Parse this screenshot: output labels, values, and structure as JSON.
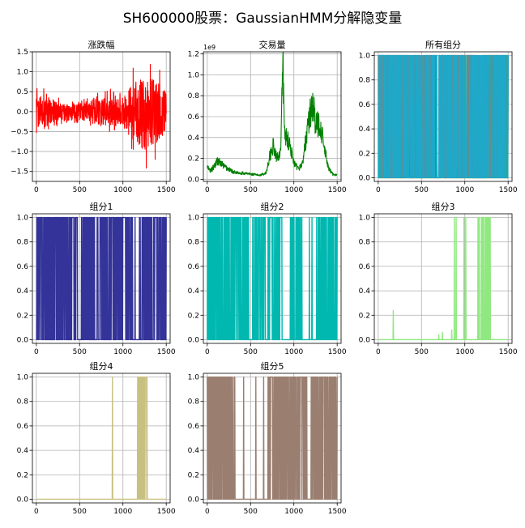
{
  "figure": {
    "suptitle": "SH600000股票：GaussianHMM分解隐变量"
  },
  "chart_data": [
    {
      "type": "line",
      "title": "涨跌幅",
      "color": "#ff0000",
      "xlim": [
        -45,
        1545
      ],
      "ylim": [
        -1.75,
        1.5
      ],
      "xticks": [
        0,
        500,
        1000,
        1500
      ],
      "yticks": [
        -1.5,
        -1.0,
        -0.5,
        0.0,
        0.5,
        1.0,
        1.5
      ],
      "ytick_labels": [
        "−1.5",
        "−1.0",
        "−0.5",
        "0.0",
        "0.5",
        "1.0",
        "1.5"
      ],
      "grid": true,
      "kind": "noise",
      "series_note": "daily change, ~1500 points oscillating around 0 with larger swings after index 1000",
      "envelope": [
        {
          "x": 0,
          "amp": 0.55
        },
        {
          "x": 100,
          "amp": 0.5
        },
        {
          "x": 300,
          "amp": 0.25
        },
        {
          "x": 600,
          "amp": 0.3
        },
        {
          "x": 750,
          "amp": 0.45
        },
        {
          "x": 900,
          "amp": 0.5
        },
        {
          "x": 1000,
          "amp": 0.45
        },
        {
          "x": 1100,
          "amp": 0.9
        },
        {
          "x": 1250,
          "amp": 1.3
        },
        {
          "x": 1400,
          "amp": 1.0
        },
        {
          "x": 1500,
          "amp": 0.7
        }
      ]
    },
    {
      "type": "line",
      "title": "交易量",
      "color": "#008000",
      "offset_text": "1e9",
      "xlim": [
        -45,
        1545
      ],
      "ylim": [
        -0.02,
        1.22
      ],
      "xticks": [
        0,
        500,
        1000,
        1500
      ],
      "yticks": [
        0.0,
        0.2,
        0.4,
        0.6,
        0.8,
        1.0,
        1.2
      ],
      "ytick_labels": [
        "0.0",
        "0.2",
        "0.4",
        "0.6",
        "0.8",
        "1.0",
        "1.2"
      ],
      "grid": true,
      "kind": "volume",
      "key_points": [
        {
          "x": 0,
          "y": 0.12
        },
        {
          "x": 30,
          "y": 0.08
        },
        {
          "x": 60,
          "y": 0.1
        },
        {
          "x": 120,
          "y": 0.18
        },
        {
          "x": 200,
          "y": 0.12
        },
        {
          "x": 300,
          "y": 0.07
        },
        {
          "x": 400,
          "y": 0.06
        },
        {
          "x": 500,
          "y": 0.05
        },
        {
          "x": 600,
          "y": 0.04
        },
        {
          "x": 680,
          "y": 0.06
        },
        {
          "x": 720,
          "y": 0.22
        },
        {
          "x": 760,
          "y": 0.32
        },
        {
          "x": 800,
          "y": 0.2
        },
        {
          "x": 850,
          "y": 0.28
        },
        {
          "x": 873,
          "y": 1.18
        },
        {
          "x": 890,
          "y": 0.45
        },
        {
          "x": 950,
          "y": 0.35
        },
        {
          "x": 1000,
          "y": 0.15
        },
        {
          "x": 1050,
          "y": 0.1
        },
        {
          "x": 1100,
          "y": 0.15
        },
        {
          "x": 1150,
          "y": 0.45
        },
        {
          "x": 1190,
          "y": 0.63
        },
        {
          "x": 1220,
          "y": 0.75
        },
        {
          "x": 1250,
          "y": 0.5
        },
        {
          "x": 1300,
          "y": 0.55
        },
        {
          "x": 1350,
          "y": 0.3
        },
        {
          "x": 1400,
          "y": 0.1
        },
        {
          "x": 1450,
          "y": 0.05
        },
        {
          "x": 1500,
          "y": 0.04
        }
      ]
    },
    {
      "type": "line",
      "title": "所有组分",
      "xlim": [
        -45,
        1545
      ],
      "ylim": [
        -0.03,
        1.03
      ],
      "xticks": [
        0,
        500,
        1000,
        1500
      ],
      "yticks": [
        0.0,
        0.2,
        0.4,
        0.6,
        0.8,
        1.0
      ],
      "ytick_labels": [
        "0.0",
        "0.2",
        "0.4",
        "0.6",
        "0.8",
        "1.0"
      ],
      "grid": true,
      "kind": "all"
    },
    {
      "type": "line",
      "title": "组分1",
      "color": "#333399",
      "xlim": [
        -45,
        1545
      ],
      "ylim": [
        -0.03,
        1.03
      ],
      "xticks": [
        0,
        500,
        1000,
        1500
      ],
      "yticks": [
        0.0,
        0.2,
        0.4,
        0.6,
        0.8,
        1.0
      ],
      "ytick_labels": [
        "0.0",
        "0.2",
        "0.4",
        "0.6",
        "0.8",
        "1.0"
      ],
      "grid": true,
      "kind": "state",
      "dense_ranges": [
        [
          0,
          480
        ],
        [
          520,
          680
        ],
        [
          700,
          1140
        ],
        [
          1230,
          1500
        ]
      ],
      "sparse_spikes": [
        1190,
        1200,
        1220
      ]
    },
    {
      "type": "line",
      "title": "组分2",
      "color": "#00b8b0",
      "xlim": [
        -45,
        1545
      ],
      "ylim": [
        -0.03,
        1.03
      ],
      "xticks": [
        0,
        500,
        1000,
        1500
      ],
      "yticks": [
        0.0,
        0.2,
        0.4,
        0.6,
        0.8,
        1.0
      ],
      "ytick_labels": [
        "0.0",
        "0.2",
        "0.4",
        "0.6",
        "0.8",
        "1.0"
      ],
      "grid": true,
      "kind": "state",
      "dense_ranges": [
        [
          0,
          480
        ],
        [
          520,
          680
        ],
        [
          700,
          880
        ],
        [
          950,
          1100
        ],
        [
          1250,
          1500
        ]
      ],
      "sparse_spikes": [
        1180,
        1210
      ]
    },
    {
      "type": "line",
      "title": "组分3",
      "color": "#90e880",
      "xlim": [
        -45,
        1545
      ],
      "ylim": [
        -0.03,
        1.03
      ],
      "xticks": [
        0,
        500,
        1000,
        1500
      ],
      "yticks": [
        0.0,
        0.2,
        0.4,
        0.6,
        0.8,
        1.0
      ],
      "ytick_labels": [
        "0.0",
        "0.2",
        "0.4",
        "0.6",
        "0.8",
        "1.0"
      ],
      "grid": true,
      "kind": "state",
      "dense_ranges": [
        [
          1150,
          1300
        ]
      ],
      "sparse_spikes": [
        880,
        900,
        990,
        1010
      ],
      "small_spikes": [
        {
          "x": 175,
          "y": 0.24
        },
        {
          "x": 700,
          "y": 0.04
        },
        {
          "x": 740,
          "y": 0.06
        },
        {
          "x": 850,
          "y": 0.08
        }
      ]
    },
    {
      "type": "line",
      "title": "组分4",
      "color": "#c8c080",
      "xlim": [
        -45,
        1545
      ],
      "ylim": [
        -0.03,
        1.03
      ],
      "xticks": [
        0,
        500,
        1000,
        1500
      ],
      "yticks": [
        0.0,
        0.2,
        0.4,
        0.6,
        0.8,
        1.0
      ],
      "ytick_labels": [
        "0.0",
        "0.2",
        "0.4",
        "0.6",
        "0.8",
        "1.0"
      ],
      "grid": true,
      "kind": "state",
      "dense_ranges": [
        [
          1170,
          1280
        ]
      ],
      "sparse_spikes": [
        880
      ]
    },
    {
      "type": "line",
      "title": "组分5",
      "color": "#9a7e70",
      "xlim": [
        -45,
        1545
      ],
      "ylim": [
        -0.03,
        1.03
      ],
      "xticks": [
        0,
        500,
        1000,
        1500
      ],
      "yticks": [
        0.0,
        0.2,
        0.4,
        0.6,
        0.8,
        1.0
      ],
      "ytick_labels": [
        "0.0",
        "0.2",
        "0.4",
        "0.6",
        "0.8",
        "1.0"
      ],
      "grid": true,
      "kind": "state",
      "dense_ranges": [
        [
          0,
          320
        ],
        [
          700,
          1150
        ],
        [
          1200,
          1500
        ]
      ],
      "sparse_spikes": [
        420,
        560,
        650
      ]
    }
  ]
}
